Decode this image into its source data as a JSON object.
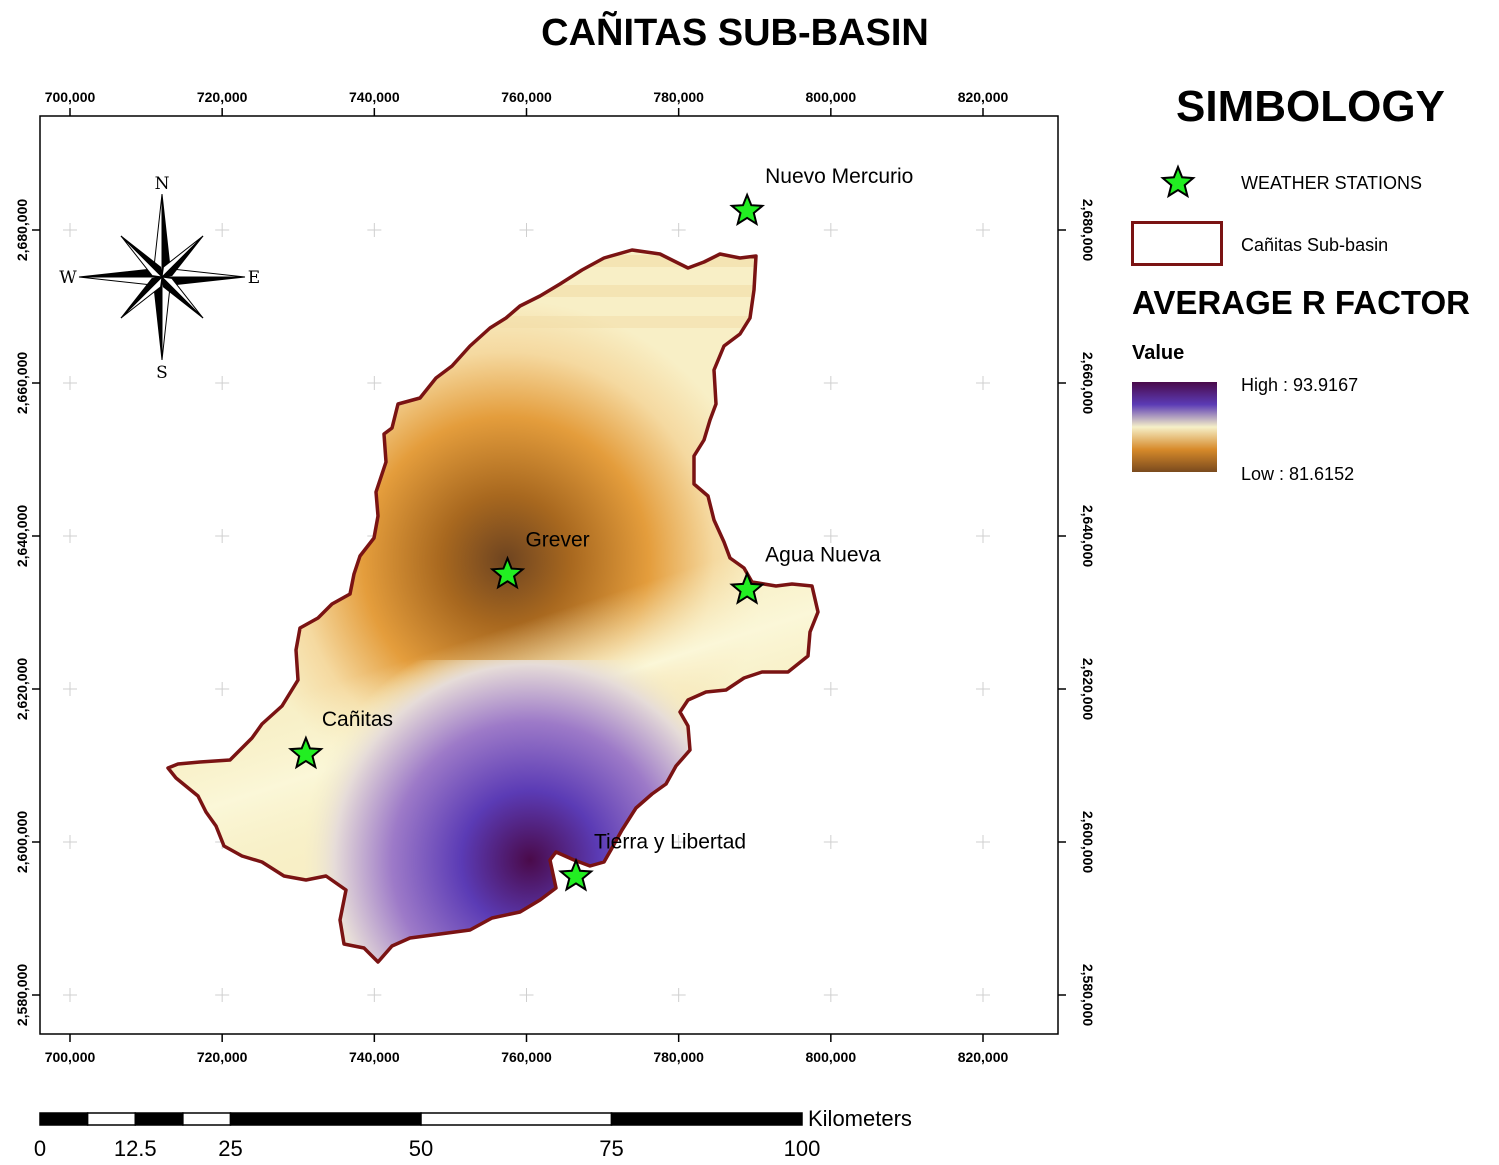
{
  "title": "CAÑITAS SUB-BASIN",
  "axes": {
    "x_ticks": [
      "700,000",
      "720,000",
      "740,000",
      "760,000",
      "780,000",
      "800,000",
      "820,000"
    ],
    "y_ticks": [
      "2,680,000",
      "2,660,000",
      "2,640,000",
      "2,620,000",
      "2,600,000",
      "2,580,000"
    ]
  },
  "compass": {
    "n": "N",
    "s": "S",
    "e": "E",
    "w": "W"
  },
  "stations": [
    {
      "name": "Nuevo Mercurio",
      "x": 789000,
      "y": 2682500
    },
    {
      "name": "Grever",
      "x": 757500,
      "y": 2635000
    },
    {
      "name": "Agua Nueva",
      "x": 789000,
      "y": 2633000
    },
    {
      "name": "Cañitas",
      "x": 731000,
      "y": 2611500
    },
    {
      "name": "Tierra y Libertad",
      "x": 766500,
      "y": 2595500
    }
  ],
  "legend": {
    "title": "SIMBOLOGY",
    "stations_label": "WEATHER STATIONS",
    "basin_label": "Cañitas Sub-basin",
    "factor_title": "AVERAGE R FACTOR",
    "value_label": "Value",
    "high_label": "High : 93.9167",
    "low_label": "Low : 81.6152",
    "high_value": 93.9167,
    "low_value": 81.6152,
    "colors": {
      "boundary": "#7a1313",
      "station": "#22ee22",
      "high": "#4a0a4a",
      "mid": "#f6f0c8",
      "low": "#7a4a1e"
    }
  },
  "scale_bar": {
    "units": "Kilometers",
    "labels": [
      "0",
      "12.5",
      "25",
      "50",
      "75",
      "100"
    ],
    "values": [
      0,
      12.5,
      25,
      50,
      75,
      100
    ]
  }
}
